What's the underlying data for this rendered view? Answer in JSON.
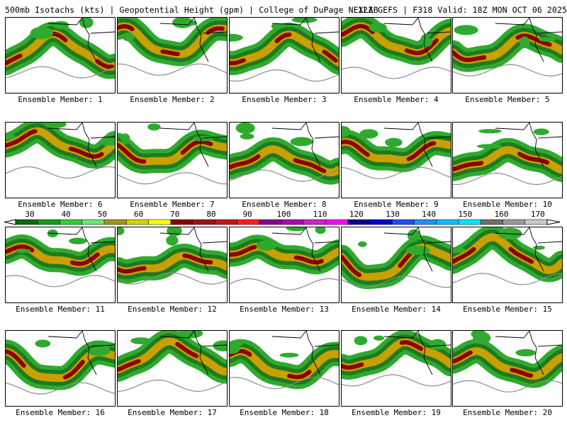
{
  "header": {
    "left": "500mb Isotachs (kts) | Geopotential Height (gpm) | College of DuPage NEXLAB",
    "right": "12Z GEFS | F318 Valid: 18Z MON OCT 06 2025"
  },
  "panels": [
    {
      "label": "Ensemble Member: 1"
    },
    {
      "label": "Ensemble Member: 2"
    },
    {
      "label": "Ensemble Member: 3"
    },
    {
      "label": "Ensemble Member: 4"
    },
    {
      "label": "Ensemble Member: 5"
    },
    {
      "label": "Ensemble Member: 6"
    },
    {
      "label": "Ensemble Member: 7"
    },
    {
      "label": "Ensemble Member: 8"
    },
    {
      "label": "Ensemble Member: 9"
    },
    {
      "label": "Ensemble Member: 10"
    },
    {
      "label": "Ensemble Member: 11"
    },
    {
      "label": "Ensemble Member: 12"
    },
    {
      "label": "Ensemble Member: 13"
    },
    {
      "label": "Ensemble Member: 14"
    },
    {
      "label": "Ensemble Member: 15"
    },
    {
      "label": "Ensemble Member: 16"
    },
    {
      "label": "Ensemble Member: 17"
    },
    {
      "label": "Ensemble Member: 18"
    },
    {
      "label": "Ensemble Member: 19"
    },
    {
      "label": "Ensemble Member: 20"
    }
  ],
  "colorbar": {
    "ticks": [
      "30",
      "40",
      "50",
      "60",
      "70",
      "80",
      "90",
      "100",
      "110",
      "120",
      "130",
      "140",
      "150",
      "160",
      "170"
    ],
    "colors": [
      "#0a6b0a",
      "#10a010",
      "#30d030",
      "#6ee86e",
      "#9a9a10",
      "#d2d212",
      "#ffff00",
      "#8b0000",
      "#a01010",
      "#c81414",
      "#ff1e1e",
      "#8b008b",
      "#b000b0",
      "#d020d0",
      "#ff00ff",
      "#00008b",
      "#0000cd",
      "#1e50ff",
      "#1e90ff",
      "#00bfff",
      "#00e5ff",
      "#6e6e6e",
      "#9a9a9a",
      "#c8c8c8"
    ]
  },
  "jet_colors": {
    "outer": "#2faa2f",
    "mid": "#1e7a1e",
    "core_yellow": "#c8a000",
    "core_red": "#8b0000"
  }
}
